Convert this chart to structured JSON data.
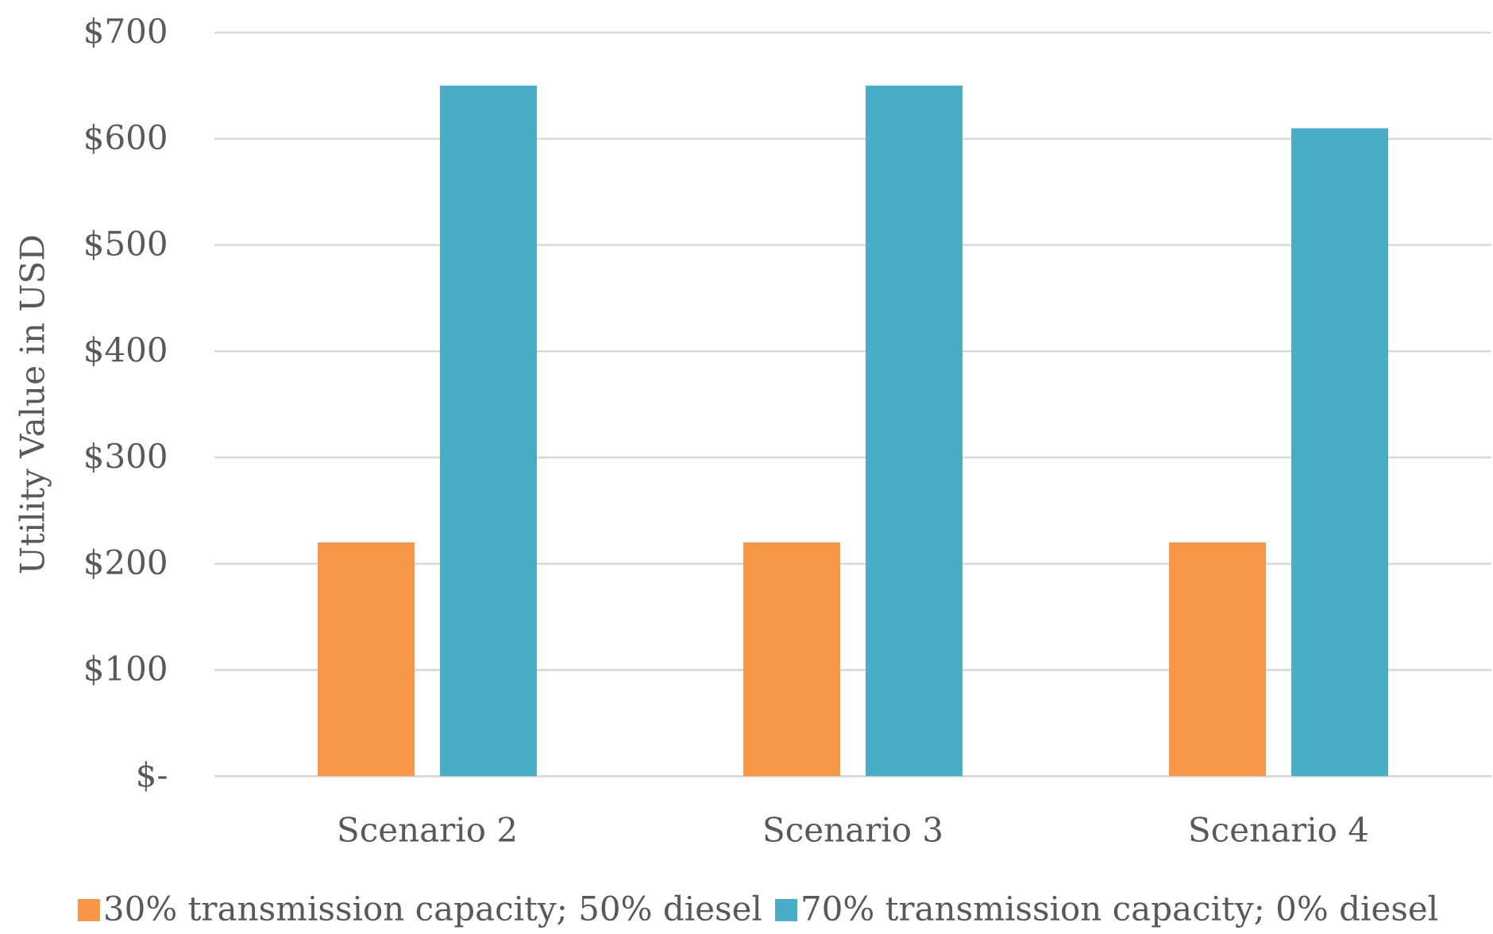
{
  "chart_data": {
    "type": "bar",
    "ylabel": "Utility Value in USD",
    "categories": [
      "Scenario 2",
      "Scenario 3",
      "Scenario 4"
    ],
    "series": [
      {
        "name": "30% transmission capacity; 50% diesel",
        "color": "#f79646",
        "values": [
          220,
          220,
          220
        ]
      },
      {
        "name": "70% transmission capacity; 0% diesel",
        "color": "#4bacc6",
        "values": [
          650,
          650,
          610
        ]
      }
    ],
    "ylim": [
      0,
      700
    ],
    "yticks": [
      {
        "value": 0,
        "label": "$-"
      },
      {
        "value": 100,
        "label": "$100"
      },
      {
        "value": 200,
        "label": "$200"
      },
      {
        "value": 300,
        "label": "$300"
      },
      {
        "value": 400,
        "label": "$400"
      },
      {
        "value": 500,
        "label": "$500"
      },
      {
        "value": 600,
        "label": "$600"
      },
      {
        "value": 700,
        "label": "$700"
      }
    ],
    "grid": "y",
    "legend": "bottom"
  }
}
